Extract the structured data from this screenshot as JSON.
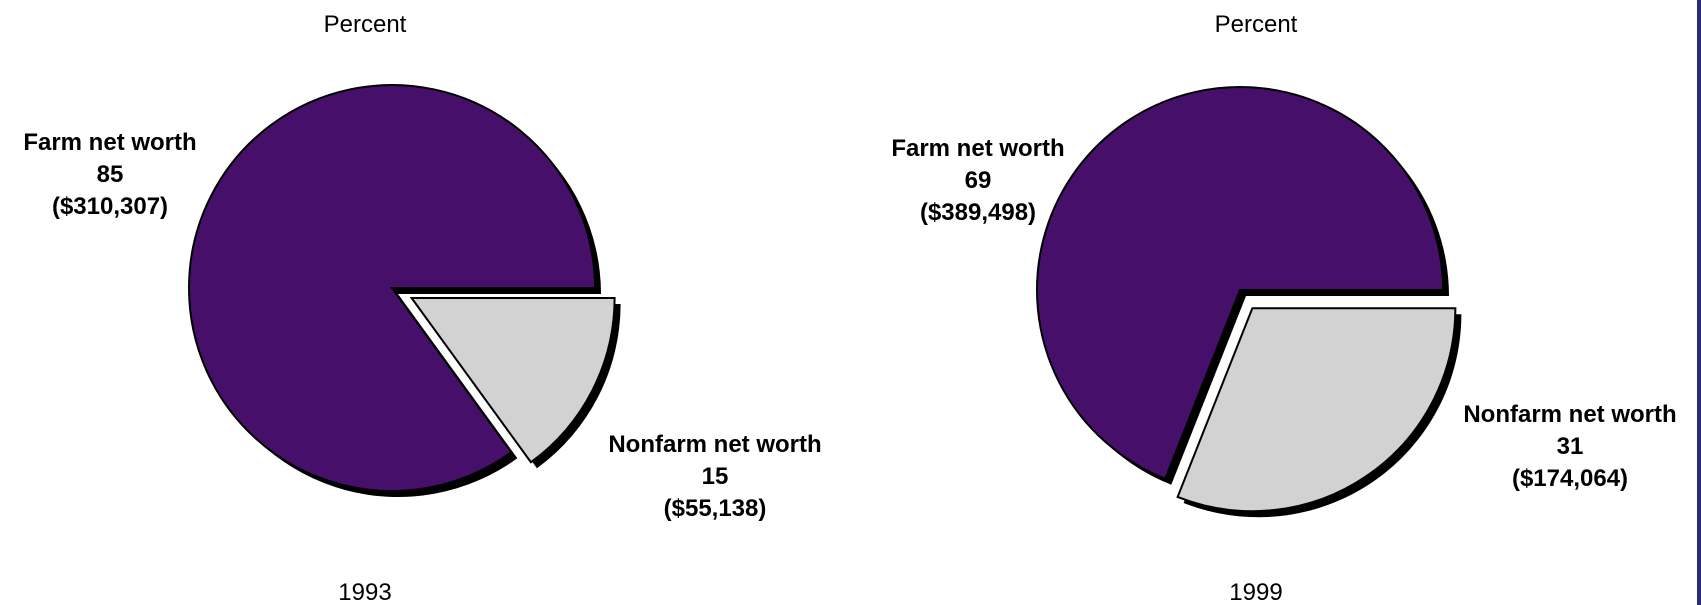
{
  "chart_data": [
    {
      "type": "pie",
      "header": "Percent",
      "year_label": "1993",
      "colors": [
        "#46106a",
        "#d2d2d2"
      ],
      "slices": [
        {
          "name": "Farm net worth",
          "percent": 85,
          "amount": "($310,307)"
        },
        {
          "name": "Nonfarm net worth",
          "percent": 15,
          "amount": "($55,138)",
          "exploded": true
        }
      ]
    },
    {
      "type": "pie",
      "header": "Percent",
      "year_label": "1999",
      "colors": [
        "#46106a",
        "#d2d2d2"
      ],
      "slices": [
        {
          "name": "Farm net worth",
          "percent": 69,
          "amount": "($389,498)"
        },
        {
          "name": "Nonfarm net worth",
          "percent": 31,
          "amount": "($174,064)",
          "exploded": true
        }
      ]
    }
  ]
}
